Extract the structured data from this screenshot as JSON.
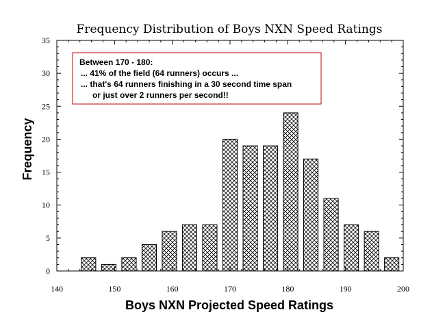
{
  "chart_data": {
    "type": "bar",
    "title": "Frequency Distribution of Boys NXN Speed Ratings",
    "xlabel": "Boys NXN Projected Speed Ratings",
    "ylabel": "Frequency",
    "xlim": [
      140,
      200
    ],
    "ylim": [
      0,
      35
    ],
    "x_ticks": [
      140,
      150,
      160,
      170,
      180,
      190,
      200
    ],
    "y_ticks": [
      0,
      5,
      10,
      15,
      20,
      25,
      30,
      35
    ],
    "bin_width": 3.5,
    "bins": [
      {
        "x": 145.5,
        "value": 2
      },
      {
        "x": 149,
        "value": 1
      },
      {
        "x": 152.5,
        "value": 2
      },
      {
        "x": 156,
        "value": 4
      },
      {
        "x": 159.5,
        "value": 6
      },
      {
        "x": 163,
        "value": 7
      },
      {
        "x": 166.5,
        "value": 7
      },
      {
        "x": 170,
        "value": 20
      },
      {
        "x": 173.5,
        "value": 19
      },
      {
        "x": 177,
        "value": 19
      },
      {
        "x": 180.5,
        "value": 24
      },
      {
        "x": 184,
        "value": 17
      },
      {
        "x": 187.5,
        "value": 11
      },
      {
        "x": 191,
        "value": 7
      },
      {
        "x": 194.5,
        "value": 6
      },
      {
        "x": 198,
        "value": 2
      }
    ],
    "annotation": {
      "lines": [
        "Between 170 - 180:",
        "... 41% of the field (64 runners) occurs ...",
        "... that's 64 runners finishing in a 30 second time span",
        "or just over 2 runners per second!!"
      ],
      "border_color": "#cc0000"
    },
    "bar_pattern": "cross-hatch",
    "grid": false
  }
}
